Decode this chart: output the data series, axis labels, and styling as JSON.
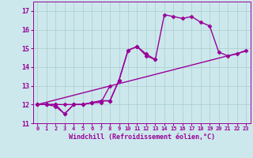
{
  "xlabel": "Windchill (Refroidissement éolien,°C)",
  "x_values": [
    0,
    1,
    2,
    3,
    4,
    5,
    6,
    7,
    8,
    9,
    10,
    11,
    12,
    13,
    14,
    15,
    16,
    17,
    18,
    19,
    20,
    21,
    22,
    23
  ],
  "line1": [
    12.0,
    12.0,
    11.9,
    11.5,
    12.0,
    12.0,
    12.1,
    12.1,
    13.0,
    null,
    null,
    null,
    null,
    null,
    null,
    null,
    null,
    null,
    null,
    null,
    null,
    null,
    null,
    null
  ],
  "line2": [
    12.0,
    12.0,
    12.0,
    11.5,
    12.0,
    12.0,
    12.1,
    12.2,
    12.2,
    13.3,
    14.9,
    15.1,
    14.7,
    14.4,
    null,
    null,
    null,
    null,
    null,
    null,
    null,
    null,
    null,
    null
  ],
  "line3": [
    12.0,
    12.0,
    12.0,
    12.0,
    12.0,
    12.0,
    12.1,
    12.2,
    12.2,
    13.3,
    14.9,
    15.1,
    14.6,
    14.4,
    16.8,
    16.7,
    16.6,
    16.7,
    16.4,
    16.2,
    14.8,
    14.6,
    14.7,
    14.9
  ],
  "line4_x": [
    0,
    23
  ],
  "line4_y": [
    12.0,
    14.85
  ],
  "ylim": [
    11.0,
    17.5
  ],
  "xlim": [
    -0.5,
    23.5
  ],
  "yticks": [
    11,
    12,
    13,
    14,
    15,
    16,
    17
  ],
  "xticks": [
    0,
    1,
    2,
    3,
    4,
    5,
    6,
    7,
    8,
    9,
    10,
    11,
    12,
    13,
    14,
    15,
    16,
    17,
    18,
    19,
    20,
    21,
    22,
    23
  ],
  "line_color": "#990099",
  "bg_color": "#cce8ec",
  "grid_color": "#aacccc",
  "marker": "D",
  "marker_size": 2.5,
  "linewidth": 1.0
}
